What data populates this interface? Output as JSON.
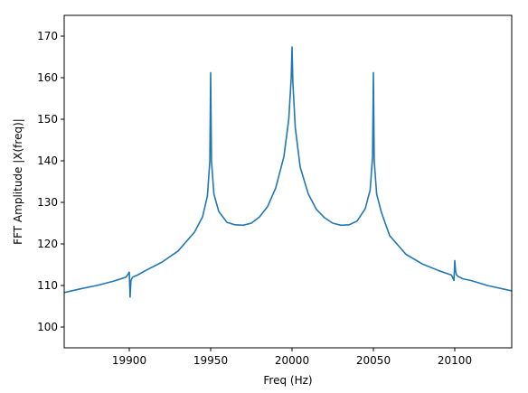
{
  "chart_data": {
    "type": "line",
    "xlabel": "Freq (Hz)",
    "ylabel": "FFT Amplitude |X(freq)|",
    "xlim": [
      19860,
      20135
    ],
    "ylim": [
      95,
      175
    ],
    "xticks": [
      19900,
      19950,
      20000,
      20050,
      20100
    ],
    "yticks": [
      100,
      110,
      120,
      130,
      140,
      150,
      160,
      170
    ],
    "grid": false,
    "line_color": "#1f77b4",
    "series": [
      {
        "x": [
          19860,
          19870,
          19880,
          19890,
          19898,
          19900,
          19900.5,
          19901,
          19902,
          19905,
          19910,
          19920,
          19930,
          19940,
          19945,
          19948,
          19949.5,
          19950,
          19950.5,
          19952,
          19955,
          19960,
          19965,
          19970,
          19975,
          19980,
          19985,
          19990,
          19995,
          19998,
          19999.5,
          20000,
          20000.5,
          20002,
          20005,
          20010,
          20015,
          20020,
          20025,
          20030,
          20035,
          20040,
          20045,
          20048,
          20049.5,
          20050,
          20050.5,
          20052,
          20055,
          20060,
          20070,
          20080,
          20090,
          20098,
          20099.5,
          20100,
          20100.5,
          20101,
          20102,
          20105,
          20110,
          20120,
          20135
        ],
        "y": [
          108.3,
          109.2,
          110.0,
          111.0,
          112.0,
          113.2,
          107.2,
          111.2,
          112.0,
          112.5,
          113.6,
          115.6,
          118.3,
          122.8,
          126.5,
          131.5,
          140.0,
          161.2,
          140.0,
          132.0,
          127.8,
          125.2,
          124.6,
          124.5,
          125.0,
          126.5,
          129.0,
          133.5,
          141.0,
          150.0,
          160.0,
          167.4,
          159.0,
          148.0,
          138.5,
          132.0,
          128.3,
          126.3,
          125.0,
          124.5,
          124.6,
          125.5,
          128.5,
          133.0,
          141.0,
          161.2,
          140.0,
          132.0,
          127.5,
          122.0,
          117.5,
          115.2,
          113.6,
          112.5,
          111.2,
          116.0,
          113.5,
          112.6,
          112.2,
          111.6,
          111.2,
          110.0,
          108.7
        ]
      }
    ]
  }
}
